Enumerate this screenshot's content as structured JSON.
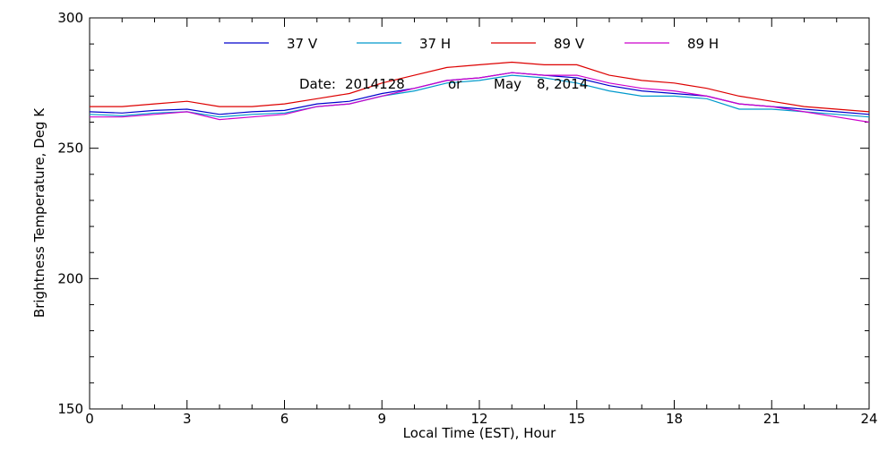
{
  "chart_data": {
    "type": "line",
    "title": "",
    "xlabel": "Local Time (EST), Hour",
    "ylabel": "Brightness Temperature, Deg K",
    "xlim": [
      0,
      24
    ],
    "ylim": [
      150,
      300
    ],
    "x_ticks": [
      0,
      3,
      6,
      9,
      12,
      15,
      18,
      21,
      24
    ],
    "y_ticks": [
      150,
      200,
      250,
      300
    ],
    "x_minor_step": 1,
    "y_minor_step": 10,
    "grid": false,
    "legend_position": "top",
    "annotations": {
      "date": {
        "label": "Date:",
        "code": "2014128",
        "connector": "or",
        "month": "May",
        "day_year": "8, 2014"
      }
    },
    "series": [
      {
        "name": "37 V",
        "color": "#0000cc",
        "points": [
          [
            0,
            264
          ],
          [
            1,
            263.5
          ],
          [
            2,
            264.5
          ],
          [
            3,
            265
          ],
          [
            4,
            263
          ],
          [
            5,
            264
          ],
          [
            6,
            264.5
          ],
          [
            7,
            267
          ],
          [
            8,
            268
          ],
          [
            9,
            271
          ],
          [
            10,
            273
          ],
          [
            11,
            276
          ],
          [
            12,
            277
          ],
          [
            13,
            279
          ],
          [
            14,
            278
          ],
          [
            15,
            277
          ],
          [
            16,
            274
          ],
          [
            17,
            272
          ],
          [
            18,
            271
          ],
          [
            19,
            270
          ],
          [
            20,
            267
          ],
          [
            21,
            266
          ],
          [
            22,
            265
          ],
          [
            23,
            264
          ],
          [
            24,
            263
          ]
        ]
      },
      {
        "name": "37 H",
        "color": "#0099cc",
        "points": [
          [
            0,
            263
          ],
          [
            1,
            262.5
          ],
          [
            2,
            263.5
          ],
          [
            3,
            264
          ],
          [
            4,
            262
          ],
          [
            5,
            263
          ],
          [
            6,
            263.5
          ],
          [
            7,
            266
          ],
          [
            8,
            267
          ],
          [
            9,
            270
          ],
          [
            10,
            272
          ],
          [
            11,
            275
          ],
          [
            12,
            276
          ],
          [
            13,
            278
          ],
          [
            14,
            277
          ],
          [
            15,
            275
          ],
          [
            16,
            272
          ],
          [
            17,
            270
          ],
          [
            18,
            270
          ],
          [
            19,
            269
          ],
          [
            20,
            265
          ],
          [
            21,
            265
          ],
          [
            22,
            264
          ],
          [
            23,
            263
          ],
          [
            24,
            262
          ]
        ]
      },
      {
        "name": "89 V",
        "color": "#dd0000",
        "points": [
          [
            0,
            266
          ],
          [
            1,
            266
          ],
          [
            2,
            267
          ],
          [
            3,
            268
          ],
          [
            4,
            266
          ],
          [
            5,
            266
          ],
          [
            6,
            267
          ],
          [
            7,
            269
          ],
          [
            8,
            271
          ],
          [
            9,
            275
          ],
          [
            10,
            278
          ],
          [
            11,
            281
          ],
          [
            12,
            282
          ],
          [
            13,
            283
          ],
          [
            14,
            282
          ],
          [
            15,
            282
          ],
          [
            16,
            278
          ],
          [
            17,
            276
          ],
          [
            18,
            275
          ],
          [
            19,
            273
          ],
          [
            20,
            270
          ],
          [
            21,
            268
          ],
          [
            22,
            266
          ],
          [
            23,
            265
          ],
          [
            24,
            264
          ]
        ]
      },
      {
        "name": "89 H",
        "color": "#cc00cc",
        "points": [
          [
            0,
            262
          ],
          [
            1,
            262
          ],
          [
            2,
            263
          ],
          [
            3,
            264
          ],
          [
            4,
            261
          ],
          [
            5,
            262
          ],
          [
            6,
            263
          ],
          [
            7,
            266
          ],
          [
            8,
            267
          ],
          [
            9,
            270
          ],
          [
            10,
            273
          ],
          [
            11,
            276
          ],
          [
            12,
            277
          ],
          [
            13,
            279
          ],
          [
            14,
            278
          ],
          [
            15,
            278
          ],
          [
            16,
            275
          ],
          [
            17,
            273
          ],
          [
            18,
            272
          ],
          [
            19,
            270
          ],
          [
            20,
            267
          ],
          [
            21,
            266
          ],
          [
            22,
            264
          ],
          [
            23,
            262
          ],
          [
            24,
            260
          ]
        ]
      }
    ]
  }
}
